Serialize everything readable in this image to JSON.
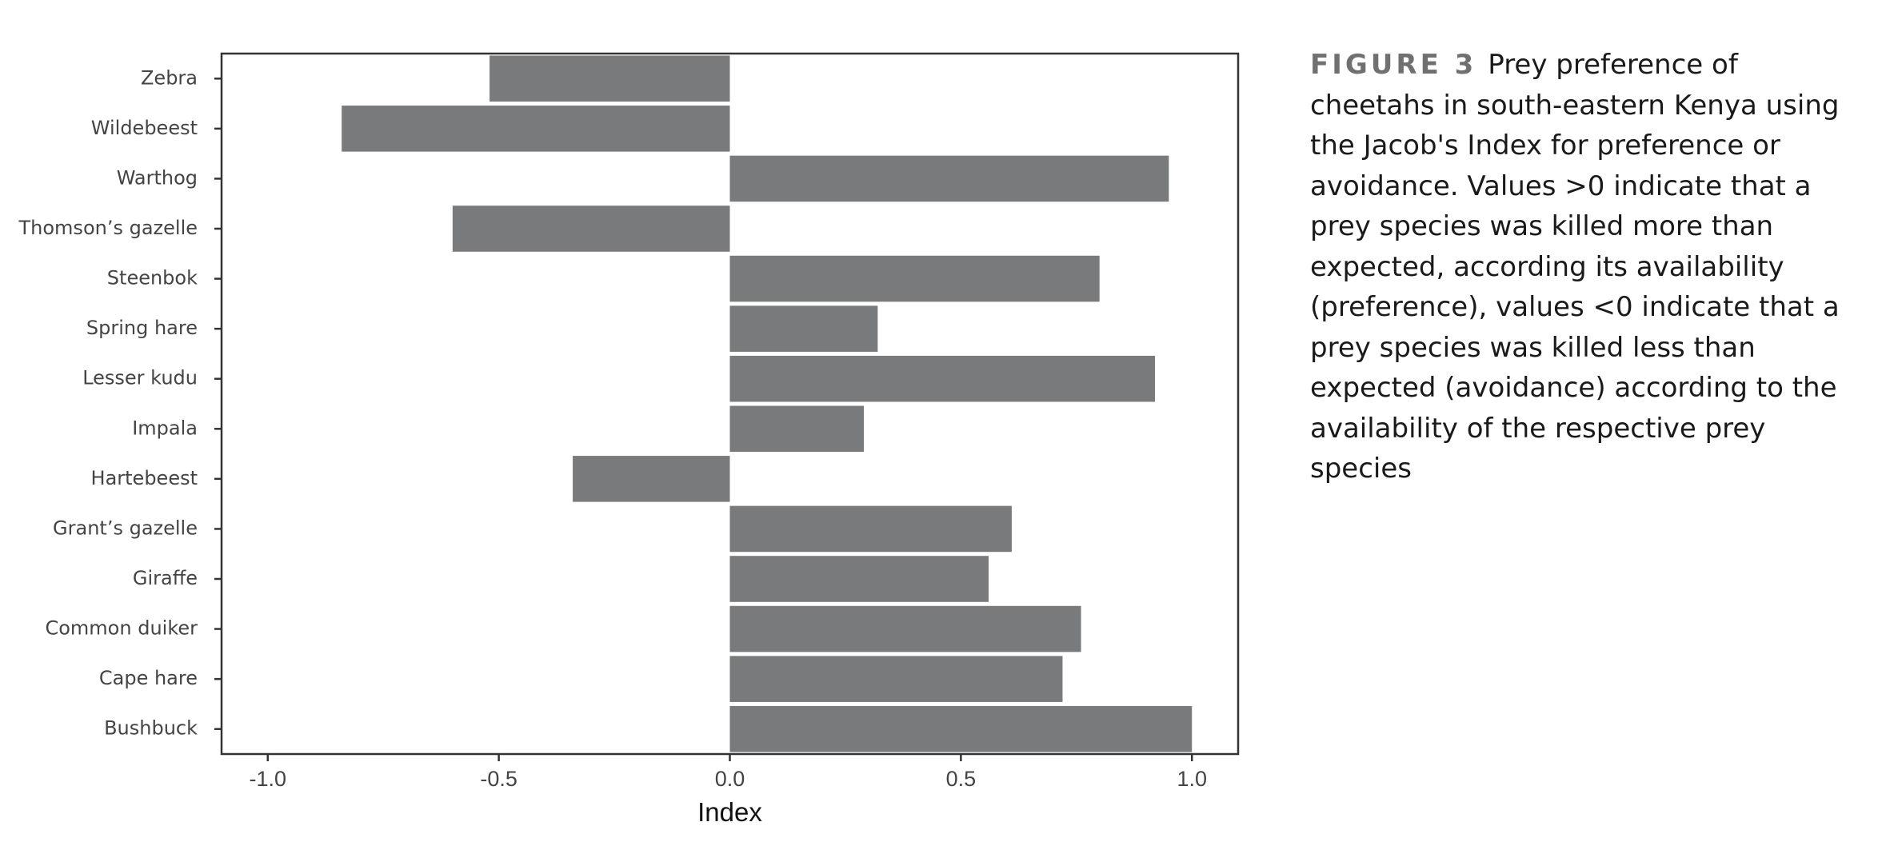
{
  "chart_data": {
    "type": "bar",
    "orientation": "horizontal",
    "categories": [
      "Zebra",
      "Wildebeest",
      "Warthog",
      "Thomson’s gazelle",
      "Steenbok",
      "Spring hare",
      "Lesser kudu",
      "Impala",
      "Hartebeest",
      "Grant’s gazelle",
      "Giraffe",
      "Common duiker",
      "Cape hare",
      "Bushbuck"
    ],
    "values": [
      -0.52,
      -0.84,
      0.95,
      -0.6,
      0.8,
      0.32,
      0.92,
      0.29,
      -0.34,
      0.61,
      0.56,
      0.76,
      0.72,
      1.0
    ],
    "xlabel": "Index",
    "ylabel": "",
    "xlim": [
      -1.1,
      1.1
    ],
    "xticks": [
      -1.0,
      -0.5,
      0.0,
      0.5,
      1.0
    ],
    "xtick_labels": [
      "-1.0",
      "-0.5",
      "0.0",
      "0.5",
      "1.0"
    ],
    "grid": false,
    "bar_color": "#797a7b"
  },
  "caption": {
    "figure_label": "FIGURE 3",
    "text": "Prey preference of cheetahs in south-eastern Kenya using the Jacob's Index for preference or avoidance. Values >0 indicate that a prey species was killed more than expected, according its availability (preference), values <0 indicate that a prey species was killed less than expected (avoidance) according to the availability of the respective prey species"
  }
}
